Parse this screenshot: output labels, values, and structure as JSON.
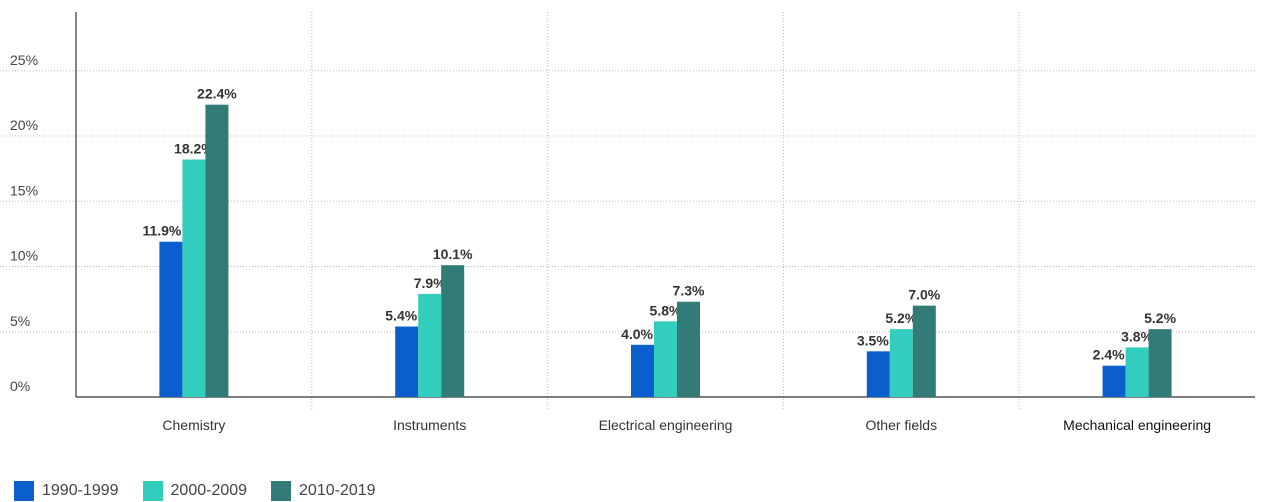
{
  "chart_data": {
    "type": "bar",
    "title": "",
    "xlabel": "",
    "ylabel": "",
    "ylim": [
      0,
      30
    ],
    "yticks": [
      0,
      5,
      10,
      15,
      20,
      25
    ],
    "ytick_labels": [
      "0%",
      "5%",
      "10%",
      "15%",
      "20%",
      "25%"
    ],
    "grid": true,
    "legend_position": "bottom-left",
    "categories": [
      "Chemistry",
      "Instruments",
      "Electrical engineering",
      "Other fields",
      "Mechanical engineering"
    ],
    "series": [
      {
        "name": "1990-1999",
        "color": "#0a5fcc",
        "values": [
          11.9,
          5.4,
          4.0,
          3.5,
          2.4
        ],
        "labels": [
          "11.9%",
          "5.4%",
          "4.0%",
          "3.5%",
          "2.4%"
        ]
      },
      {
        "name": "2000-2009",
        "color": "#33cdbd",
        "values": [
          18.2,
          7.9,
          5.8,
          5.2,
          3.8
        ],
        "labels": [
          "18.2%",
          "7.9%",
          "5.8%",
          "5.2%",
          "3.8%"
        ]
      },
      {
        "name": "2010-2019",
        "color": "#327b77",
        "values": [
          22.4,
          10.1,
          7.3,
          7.0,
          5.2
        ],
        "labels": [
          "22.4%",
          "10.1%",
          "7.3%",
          "7.0%",
          "5.2%"
        ]
      }
    ]
  }
}
